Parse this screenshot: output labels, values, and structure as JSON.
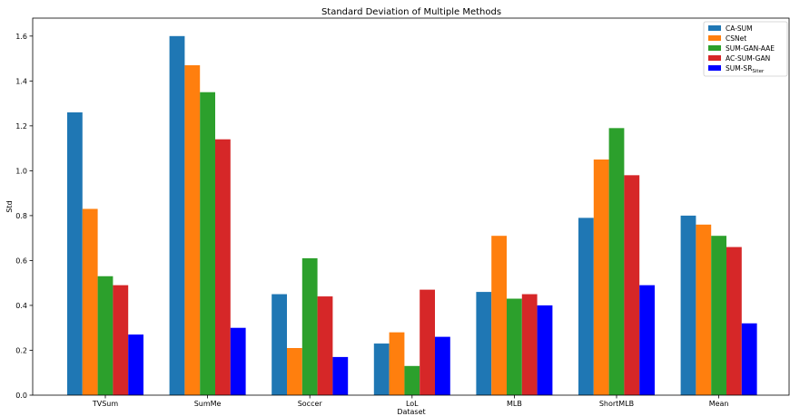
{
  "chart_data": {
    "type": "bar",
    "title": "Standard Deviation of Multiple Methods",
    "xlabel": "Dataset",
    "ylabel": "Std",
    "ylim": [
      0,
      1.68
    ],
    "yticks": [
      "0.0",
      "0.2",
      "0.4",
      "0.6",
      "0.8",
      "1.0",
      "1.2",
      "1.4",
      "1.6"
    ],
    "categories": [
      "TVSum",
      "SumMe",
      "Soccer",
      "LoL",
      "MLB",
      "ShortMLB",
      "Mean"
    ],
    "series": [
      {
        "name": "CA-SUM",
        "color": "#1f77b4",
        "values": [
          1.26,
          1.6,
          0.45,
          0.23,
          0.46,
          0.79,
          0.8
        ]
      },
      {
        "name": "CSNet",
        "color": "#ff7f0e",
        "values": [
          0.83,
          1.47,
          0.21,
          0.28,
          0.71,
          1.05,
          0.76
        ]
      },
      {
        "name": "SUM-GAN-AAE",
        "color": "#2ca02c",
        "values": [
          0.53,
          1.35,
          0.61,
          0.13,
          0.43,
          1.19,
          0.71
        ]
      },
      {
        "name": "AC-SUM-GAN",
        "color": "#d62728",
        "values": [
          0.49,
          1.14,
          0.44,
          0.47,
          0.45,
          0.98,
          0.66
        ]
      },
      {
        "name": "SUM-SR",
        "name_subscript": "Siter",
        "color": "#0000ff",
        "values": [
          0.27,
          0.3,
          0.17,
          0.26,
          0.4,
          0.49,
          0.32
        ]
      }
    ],
    "grid": false,
    "legend_position": "top-right"
  }
}
